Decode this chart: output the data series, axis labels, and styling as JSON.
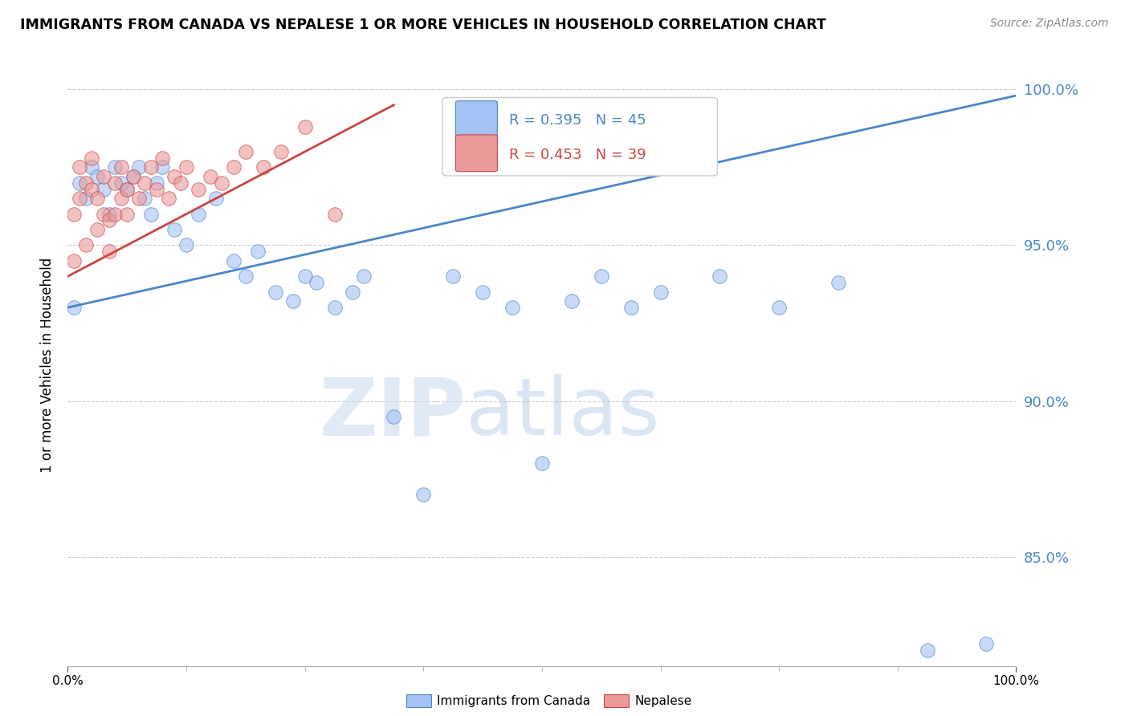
{
  "title": "IMMIGRANTS FROM CANADA VS NEPALESE 1 OR MORE VEHICLES IN HOUSEHOLD CORRELATION CHART",
  "source": "Source: ZipAtlas.com",
  "ylabel": "1 or more Vehicles in Household",
  "watermark_zip": "ZIP",
  "watermark_atlas": "atlas",
  "blue_label": "Immigrants from Canada",
  "pink_label": "Nepalese",
  "blue_R": 0.395,
  "blue_N": 45,
  "pink_R": 0.453,
  "pink_N": 39,
  "blue_color": "#a4c2f4",
  "pink_color": "#ea9999",
  "blue_line_color": "#4a86c8",
  "pink_line_color": "#cc4444",
  "xlim": [
    0.0,
    0.16
  ],
  "ylim": [
    0.815,
    1.008
  ],
  "right_yticks": [
    1.0,
    0.95,
    0.9,
    0.85
  ],
  "right_yticklabels": [
    "100.0%",
    "95.0%",
    "90.0%",
    "85.0%"
  ],
  "blue_x": [
    0.001,
    0.002,
    0.003,
    0.004,
    0.005,
    0.006,
    0.007,
    0.008,
    0.009,
    0.01,
    0.011,
    0.012,
    0.013,
    0.014,
    0.015,
    0.016,
    0.018,
    0.02,
    0.022,
    0.025,
    0.028,
    0.03,
    0.032,
    0.035,
    0.038,
    0.04,
    0.042,
    0.045,
    0.048,
    0.05,
    0.055,
    0.06,
    0.065,
    0.07,
    0.075,
    0.08,
    0.085,
    0.09,
    0.095,
    0.1,
    0.11,
    0.12,
    0.13,
    0.145,
    0.155
  ],
  "blue_y": [
    0.93,
    0.97,
    0.965,
    0.975,
    0.972,
    0.968,
    0.96,
    0.975,
    0.97,
    0.968,
    0.972,
    0.975,
    0.965,
    0.96,
    0.97,
    0.975,
    0.955,
    0.95,
    0.96,
    0.965,
    0.945,
    0.94,
    0.948,
    0.935,
    0.932,
    0.94,
    0.938,
    0.93,
    0.935,
    0.94,
    0.895,
    0.87,
    0.94,
    0.935,
    0.93,
    0.88,
    0.932,
    0.94,
    0.93,
    0.935,
    0.94,
    0.93,
    0.938,
    0.82,
    0.822
  ],
  "pink_x": [
    0.001,
    0.001,
    0.002,
    0.002,
    0.003,
    0.003,
    0.004,
    0.004,
    0.005,
    0.005,
    0.006,
    0.006,
    0.007,
    0.007,
    0.008,
    0.008,
    0.009,
    0.009,
    0.01,
    0.01,
    0.011,
    0.012,
    0.013,
    0.014,
    0.015,
    0.016,
    0.017,
    0.018,
    0.019,
    0.02,
    0.022,
    0.024,
    0.026,
    0.028,
    0.03,
    0.033,
    0.036,
    0.04,
    0.045
  ],
  "pink_y": [
    0.945,
    0.96,
    0.965,
    0.975,
    0.95,
    0.97,
    0.968,
    0.978,
    0.955,
    0.965,
    0.96,
    0.972,
    0.948,
    0.958,
    0.96,
    0.97,
    0.965,
    0.975,
    0.968,
    0.96,
    0.972,
    0.965,
    0.97,
    0.975,
    0.968,
    0.978,
    0.965,
    0.972,
    0.97,
    0.975,
    0.968,
    0.972,
    0.97,
    0.975,
    0.98,
    0.975,
    0.98,
    0.988,
    0.96
  ],
  "blue_line_x": [
    0.0,
    0.16
  ],
  "blue_line_y": [
    0.93,
    0.998
  ],
  "pink_line_x": [
    0.0,
    0.055
  ],
  "pink_line_y": [
    0.94,
    0.995
  ],
  "xtick_positions": [
    0.0,
    0.02,
    0.04,
    0.06,
    0.08,
    0.1,
    0.12,
    0.14,
    0.16
  ],
  "xtick_labels": [
    "0.0%",
    "",
    "",
    "",
    "",
    "",
    "",
    "",
    ""
  ],
  "xticklabel_right": "100.0%"
}
